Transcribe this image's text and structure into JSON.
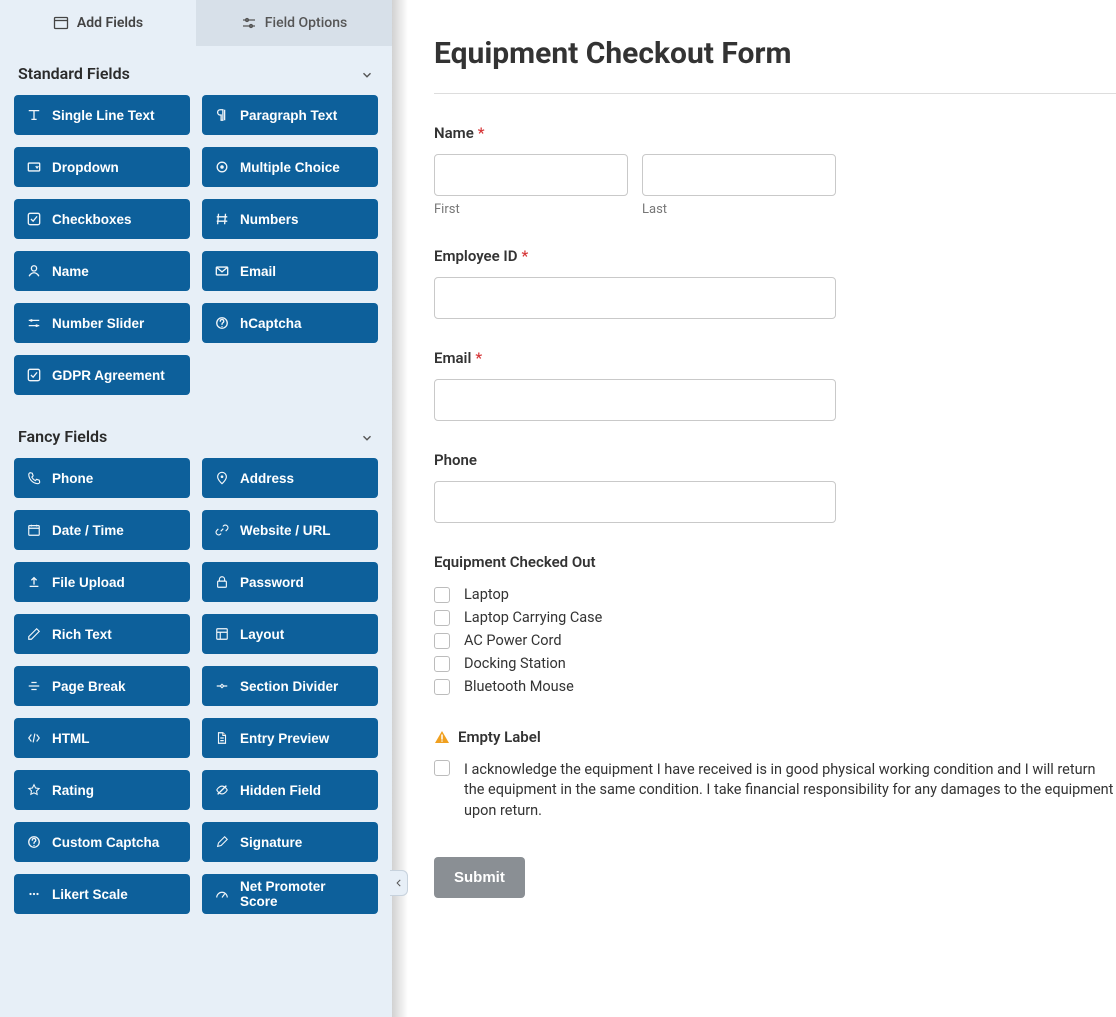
{
  "tabs": {
    "add_fields": "Add Fields",
    "field_options": "Field Options"
  },
  "sections": {
    "standard": {
      "title": "Standard Fields",
      "fields": [
        {
          "icon": "text",
          "label": "Single Line Text"
        },
        {
          "icon": "paragraph",
          "label": "Paragraph Text"
        },
        {
          "icon": "dropdown",
          "label": "Dropdown"
        },
        {
          "icon": "radio",
          "label": "Multiple Choice"
        },
        {
          "icon": "check",
          "label": "Checkboxes"
        },
        {
          "icon": "hash",
          "label": "Numbers"
        },
        {
          "icon": "person",
          "label": "Name"
        },
        {
          "icon": "mail",
          "label": "Email"
        },
        {
          "icon": "sliders",
          "label": "Number Slider"
        },
        {
          "icon": "question",
          "label": "hCaptcha"
        },
        {
          "icon": "check",
          "label": "GDPR Agreement"
        }
      ]
    },
    "fancy": {
      "title": "Fancy Fields",
      "fields": [
        {
          "icon": "phone",
          "label": "Phone"
        },
        {
          "icon": "pin",
          "label": "Address"
        },
        {
          "icon": "calendar",
          "label": "Date / Time"
        },
        {
          "icon": "link",
          "label": "Website / URL"
        },
        {
          "icon": "upload",
          "label": "File Upload"
        },
        {
          "icon": "lock",
          "label": "Password"
        },
        {
          "icon": "edit",
          "label": "Rich Text"
        },
        {
          "icon": "layout",
          "label": "Layout"
        },
        {
          "icon": "break",
          "label": "Page Break"
        },
        {
          "icon": "divider",
          "label": "Section Divider"
        },
        {
          "icon": "code",
          "label": "HTML"
        },
        {
          "icon": "file",
          "label": "Entry Preview"
        },
        {
          "icon": "star",
          "label": "Rating"
        },
        {
          "icon": "eye-off",
          "label": "Hidden Field"
        },
        {
          "icon": "question",
          "label": "Custom Captcha"
        },
        {
          "icon": "pen",
          "label": "Signature"
        },
        {
          "icon": "dots",
          "label": "Likert Scale"
        },
        {
          "icon": "gauge",
          "label": "Net Promoter Score"
        }
      ]
    }
  },
  "form": {
    "title": "Equipment Checkout Form",
    "name_label": "Name",
    "first_sub": "First",
    "last_sub": "Last",
    "employee_id_label": "Employee ID",
    "email_label": "Email",
    "phone_label": "Phone",
    "equipment_label": "Equipment Checked Out",
    "equipment_options": [
      "Laptop",
      "Laptop Carrying Case",
      "AC Power Cord",
      "Docking Station",
      "Bluetooth Mouse"
    ],
    "empty_label": "Empty Label",
    "ack_text": "I acknowledge the equipment I have received is in good physical working condition and I will return the equipment in the same condition. I take financial responsibility for any damages to the equipment upon return.",
    "submit": "Submit"
  },
  "colors": {
    "field_btn": "#0d609b",
    "sidebar_bg": "#e7eff7",
    "required": "#d63638"
  }
}
